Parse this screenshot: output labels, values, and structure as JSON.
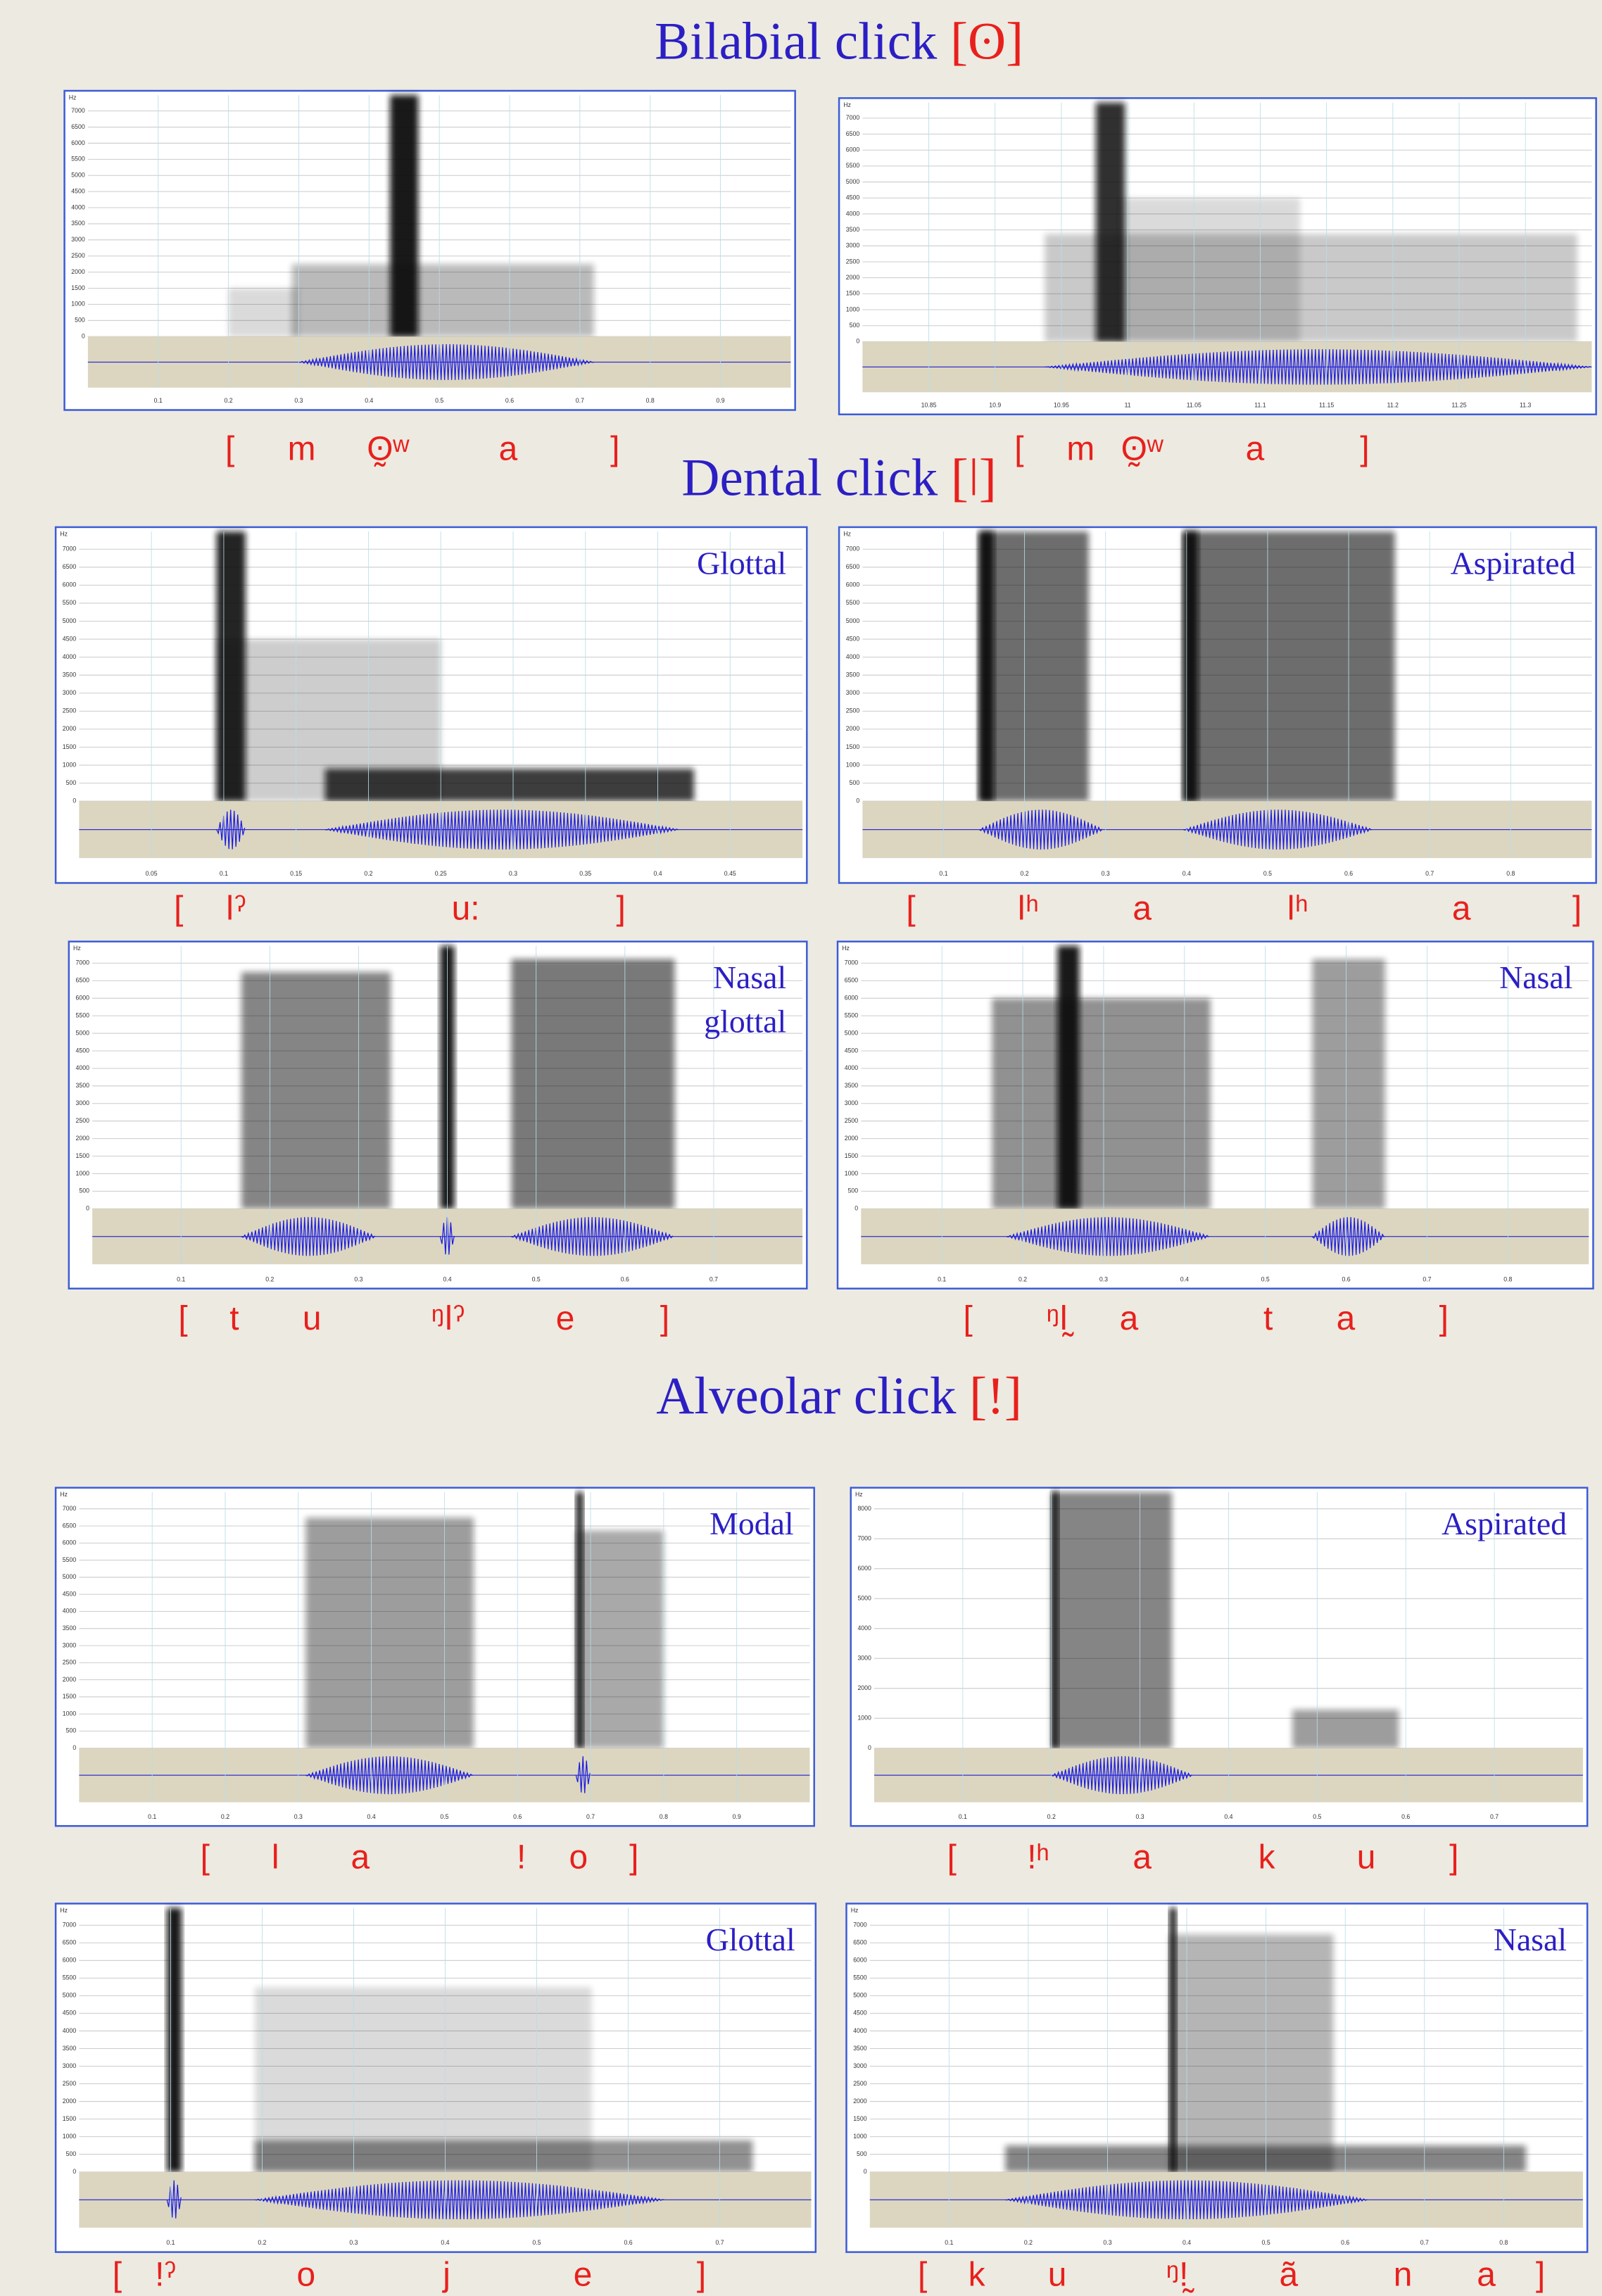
{
  "hz_label": "Hz",
  "yticks": [
    0,
    500,
    1000,
    1500,
    2000,
    2500,
    3000,
    3500,
    4000,
    4500,
    5000,
    5500,
    6000,
    6500,
    7000
  ],
  "sections": [
    {
      "title": "Bilabial click",
      "symbol": "[ʘ]",
      "panels": [
        {
          "label": [],
          "xticks": [
            0.1,
            0.2,
            0.3,
            0.4,
            0.5,
            0.6,
            0.7,
            0.8,
            0.9
          ],
          "transcription": [
            "[",
            "m",
            "ʘ̰ʷ",
            "a",
            "]"
          ]
        },
        {
          "label": [],
          "xticks": [
            10.85,
            10.9,
            10.95,
            11,
            11.05,
            11.1,
            11.15,
            11.2,
            11.25,
            11.3
          ],
          "transcription": [
            "[",
            "m",
            "ʘ̰ʷ",
            "a",
            "]"
          ]
        }
      ]
    },
    {
      "title": "Dental click",
      "symbol": "[ǀ]",
      "panels": [
        {
          "label": [
            "Glottal"
          ],
          "xticks": [
            0.05,
            0.1,
            0.15,
            0.2,
            0.25,
            0.3,
            0.35,
            0.4,
            0.45
          ],
          "transcription": [
            "[",
            "ǀˀ",
            "u:",
            "]"
          ]
        },
        {
          "label": [
            "Aspirated"
          ],
          "xticks": [
            0.1,
            0.2,
            0.3,
            0.4,
            0.5,
            0.6,
            0.7,
            0.8
          ],
          "transcription": [
            "[",
            "ǀʰ",
            "a",
            "ǀʰ",
            "a",
            "]"
          ]
        },
        {
          "label": [
            "Nasal",
            "glottal"
          ],
          "xticks": [
            0.1,
            0.2,
            0.3,
            0.4,
            0.5,
            0.6,
            0.7
          ],
          "transcription": [
            "[",
            "t",
            "u",
            "ᵑǀˀ",
            "e",
            "]"
          ]
        },
        {
          "label": [
            "Nasal"
          ],
          "xticks": [
            0.1,
            0.2,
            0.3,
            0.4,
            0.5,
            0.6,
            0.7,
            0.8
          ],
          "transcription": [
            "[",
            "ᵑǀ̰",
            "a",
            "t",
            "a",
            "]"
          ]
        }
      ]
    },
    {
      "title": "Alveolar click",
      "symbol": "[!]",
      "panels": [
        {
          "label": [
            "Modal"
          ],
          "xticks": [
            0.1,
            0.2,
            0.3,
            0.4,
            0.5,
            0.6,
            0.7,
            0.8,
            0.9
          ],
          "transcription": [
            "[",
            "l",
            "a",
            "!",
            "o",
            "]"
          ]
        },
        {
          "label": [
            "Aspirated"
          ],
          "xticks": [
            0.1,
            0.2,
            0.3,
            0.4,
            0.5,
            0.6,
            0.7
          ],
          "yticks": [
            0,
            1000,
            2000,
            3000,
            4000,
            5000,
            6000,
            7000,
            8000
          ],
          "transcription": [
            "[",
            "!ʰ",
            "a",
            "k",
            "u",
            "]"
          ]
        },
        {
          "label": [
            "Glottal"
          ],
          "xticks": [
            0.1,
            0.2,
            0.3,
            0.4,
            0.5,
            0.6,
            0.7
          ],
          "transcription": [
            "[",
            "!ˀ",
            "o",
            "j",
            "e",
            "]"
          ]
        },
        {
          "label": [
            "Nasal"
          ],
          "xticks": [
            0.1,
            0.2,
            0.3,
            0.4,
            0.5,
            0.6,
            0.7,
            0.8
          ],
          "transcription": [
            "[",
            "k",
            "u",
            "ᵑ!̰",
            "ã",
            "n",
            "a",
            "]"
          ]
        }
      ]
    }
  ]
}
